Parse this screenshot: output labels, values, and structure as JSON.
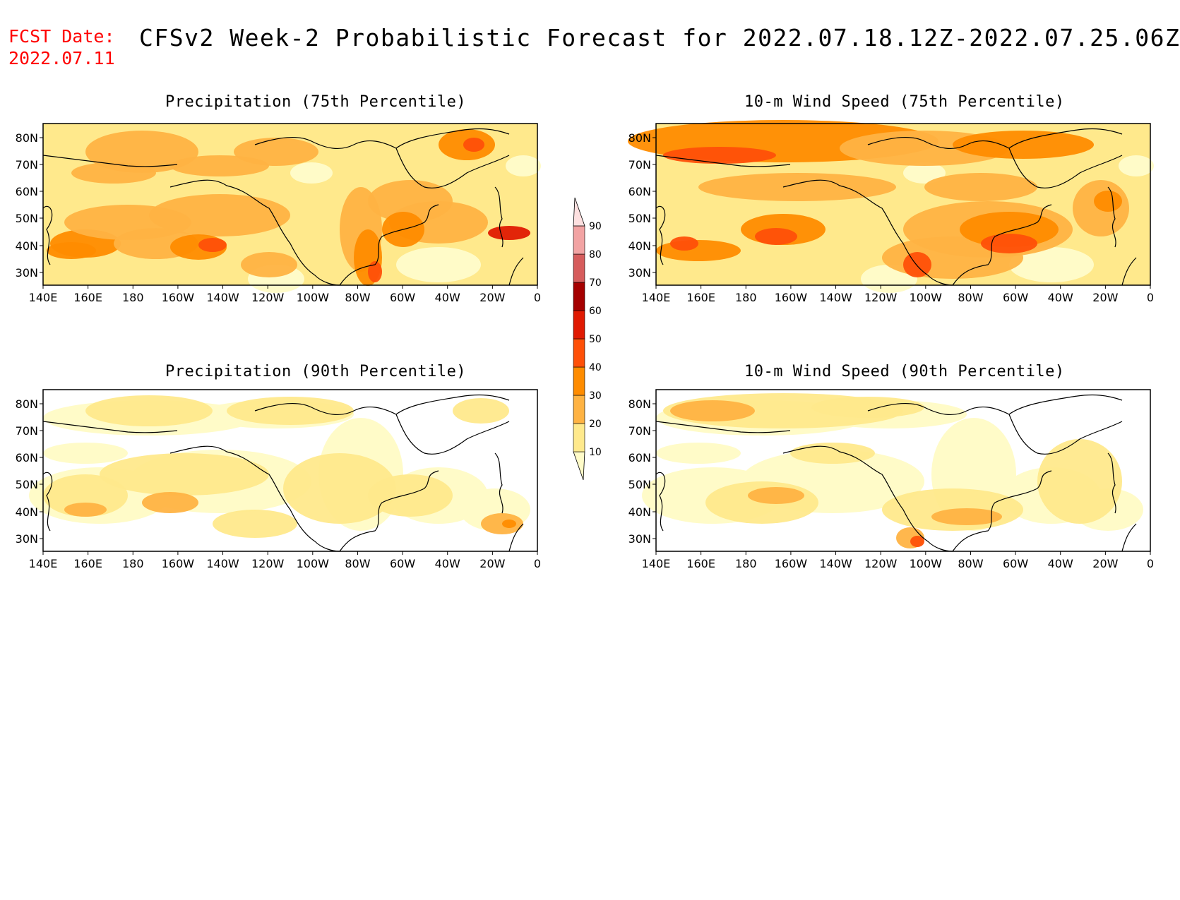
{
  "header": {
    "fcst_label": "FCST Date:",
    "fcst_date": "2022.07.11",
    "title": "CFSv2 Week-2 Probabilistic Forecast for 2022.07.18.12Z-2022.07.25.06Z"
  },
  "panels": [
    {
      "id": "p1",
      "title": "Precipitation (75th Percentile)",
      "level": "high",
      "variable": "precip"
    },
    {
      "id": "p2",
      "title": "10-m Wind Speed (75th Percentile)",
      "level": "high",
      "variable": "wind"
    },
    {
      "id": "p3",
      "title": "Precipitation (90th Percentile)",
      "level": "low",
      "variable": "precip"
    },
    {
      "id": "p4",
      "title": "10-m Wind Speed (90th Percentile)",
      "level": "low",
      "variable": "wind"
    }
  ],
  "axes": {
    "lon_labels": [
      "140E",
      "160E",
      "180",
      "160W",
      "140W",
      "120W",
      "100W",
      "80W",
      "60W",
      "40W",
      "20W",
      "0"
    ],
    "lat_labels": [
      "80N",
      "70N",
      "60N",
      "50N",
      "40N",
      "30N"
    ]
  },
  "colorbar": {
    "levels": [
      "10",
      "20",
      "30",
      "40",
      "50",
      "60",
      "70",
      "80",
      "90"
    ],
    "colors": [
      "#fffbc8",
      "#ffe98c",
      "#ffb343",
      "#ff8c00",
      "#ff5008",
      "#e01a02",
      "#a50000",
      "#d65c5c",
      "#f2a3a3",
      "#fde0e0"
    ]
  }
}
